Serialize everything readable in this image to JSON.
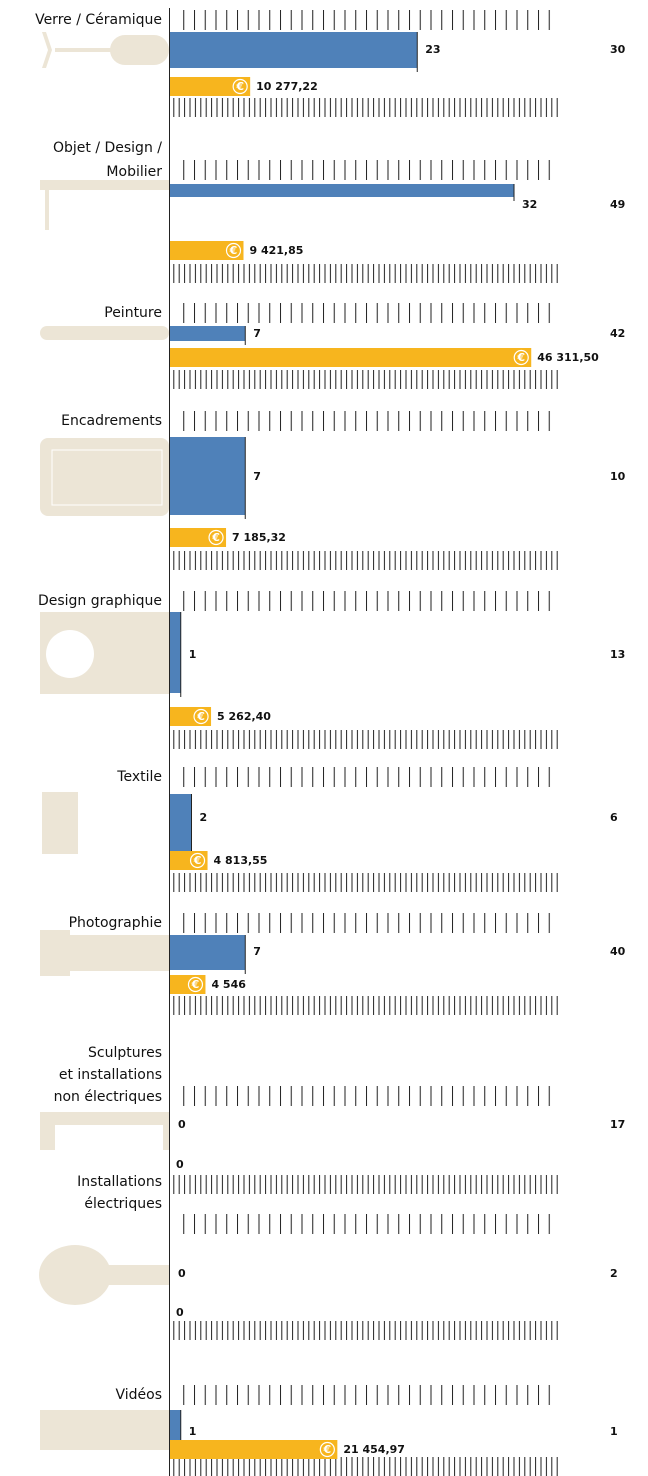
{
  "chart_data": {
    "type": "bar",
    "categories": [
      [
        "Verre / Céramique"
      ],
      [
        "Objet / Design /",
        "Mobilier"
      ],
      [
        "Peinture"
      ],
      [
        "Encadrements"
      ],
      [
        "Design graphique"
      ],
      [
        "Textile"
      ],
      [
        "Photographie"
      ],
      [
        "Sculptures",
        "et installations",
        "non électriques"
      ],
      [
        "Installations",
        "électriques"
      ],
      [
        "Vidéos"
      ]
    ],
    "series": [
      {
        "color": "#4f81b9",
        "values": [
          23,
          32,
          7,
          7,
          1,
          2,
          7,
          0,
          0,
          1
        ]
      },
      {
        "color": "#f7b51e",
        "values": [
          10277.22,
          9421.85,
          46311.5,
          7185.32,
          5262.4,
          4813.55,
          4546,
          0,
          0,
          21454.97
        ],
        "value_labels": [
          "10 277,22",
          "9 421,85",
          "46 311,50",
          "7 185,32",
          "5 262,40",
          "4 813,55",
          "4 546",
          "0",
          "0",
          "21 454,97"
        ]
      }
    ],
    "currency": "€",
    "totals": [
      30,
      49,
      42,
      10,
      13,
      6,
      40,
      17,
      2,
      1
    ]
  }
}
